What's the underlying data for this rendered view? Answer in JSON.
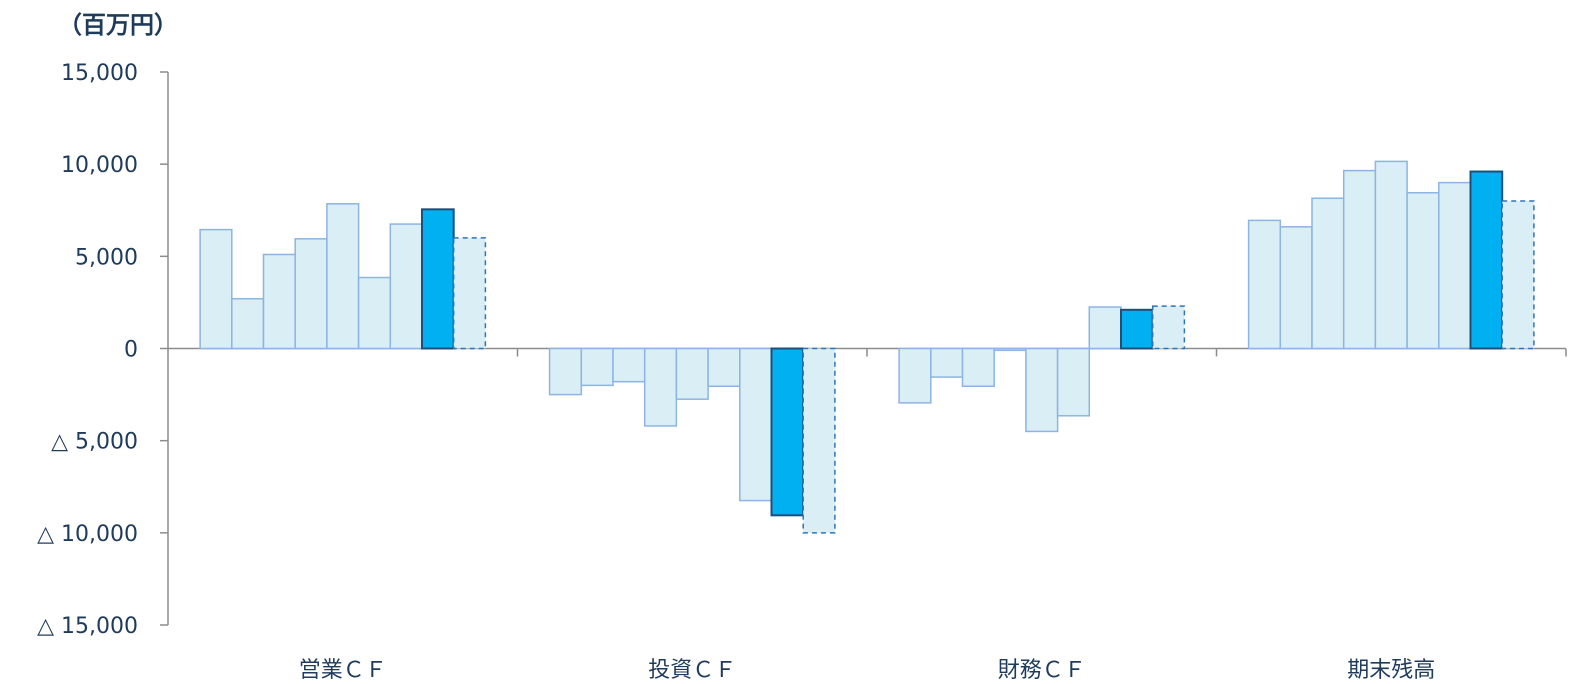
{
  "chart_data": {
    "type": "bar",
    "unit_label": "（百万円）",
    "categories": [
      "営業ＣＦ",
      "投資ＣＦ",
      "財務ＣＦ",
      "期末残高"
    ],
    "ylim": [
      -15000,
      15000
    ],
    "y_ticks": [
      15000,
      10000,
      5000,
      0,
      -5000,
      -10000,
      -15000
    ],
    "y_tick_labels": [
      "15,000",
      "10,000",
      "5,000",
      "0",
      "△ 5,000",
      "△ 10,000",
      "△ 15,000"
    ],
    "grid": false,
    "legend": "none",
    "colors": {
      "past_fill": "#daeef5",
      "past_stroke": "#8db4e2",
      "current_fill": "#00b0f0",
      "current_stroke": "#1f4e79",
      "forecast_fill": "#daeef5",
      "forecast_stroke": "#2e75b6",
      "axis": "#8c8c8c",
      "text": "#1f3b5c"
    },
    "groups": [
      {
        "category": "営業ＣＦ",
        "values": [
          6450,
          2700,
          5100,
          5950,
          7850,
          3850,
          6750,
          7550,
          6000
        ]
      },
      {
        "category": "投資ＣＦ",
        "values": [
          -2500,
          -2000,
          -1800,
          -4200,
          -2750,
          -2050,
          -8250,
          -9050,
          -10000
        ]
      },
      {
        "category": "財務ＣＦ",
        "values": [
          -2950,
          -1550,
          -2050,
          -100,
          -4500,
          -3650,
          2250,
          2100,
          2300
        ]
      },
      {
        "category": "期末残高",
        "values": [
          6950,
          6600,
          8150,
          9650,
          10150,
          8450,
          9000,
          9600,
          8000
        ]
      }
    ],
    "bar_styles": [
      "past",
      "past",
      "past",
      "past",
      "past",
      "past",
      "past",
      "current",
      "forecast"
    ]
  }
}
